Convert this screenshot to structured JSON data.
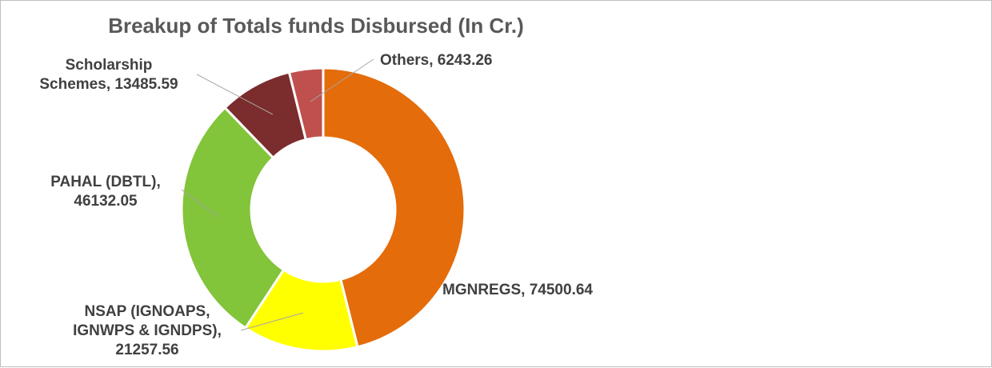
{
  "chart_data": {
    "type": "donut",
    "title": "Breakup of Totals funds Disbursed (In Cr.)",
    "slices": [
      {
        "name": "MGNREGS",
        "value": 74500.64,
        "color": "#E46C0A",
        "label_lines": [
          "MGNREGS, 74500.64"
        ]
      },
      {
        "name": "NSAP (IGNOAPS, IGNWPS & IGNDPS)",
        "value": 21257.56,
        "color": "#FFFF00",
        "label_lines": [
          "NSAP (IGNOAPS,",
          "IGNWPS & IGNDPS),",
          "21257.56"
        ]
      },
      {
        "name": "PAHAL (DBTL)",
        "value": 46132.05,
        "color": "#82C43A",
        "label_lines": [
          "PAHAL (DBTL),",
          "46132.05"
        ]
      },
      {
        "name": "Scholarship Schemes",
        "value": 13485.59,
        "color": "#7B2C2C",
        "label_lines": [
          "Scholarship",
          "Schemes, 13485.59"
        ]
      },
      {
        "name": "Others",
        "value": 6243.26,
        "color": "#C0504D",
        "label_lines": [
          "Others, 6243.26"
        ]
      }
    ]
  }
}
